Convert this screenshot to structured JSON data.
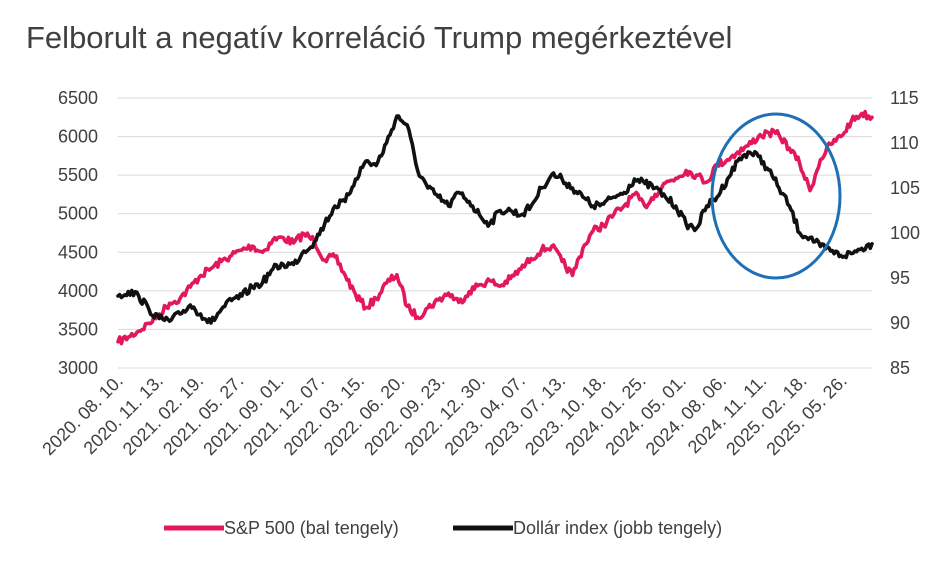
{
  "chart_data": {
    "type": "line",
    "title": "Felborult a negatív korreláció Trump megérkeztével",
    "x_tick_labels": [
      "2020. 08. 10.",
      "2020. 11. 13.",
      "2021. 02. 19.",
      "2021. 05. 27.",
      "2021. 09. 01.",
      "2021. 12. 07.",
      "2022. 03. 15.",
      "2022. 06. 20.",
      "2022. 09. 23.",
      "2022. 12. 30.",
      "2023. 04. 07.",
      "2023. 07. 13.",
      "2023. 10. 18.",
      "2024. 01. 25.",
      "2024. 05. 01.",
      "2024. 08. 06.",
      "2024. 11. 11.",
      "2025. 02. 18.",
      "2025. 05. 26."
    ],
    "left_axis": {
      "ylim": [
        3000,
        6500
      ],
      "ticks": [
        3000,
        3500,
        4000,
        4500,
        5000,
        5500,
        6000,
        6500
      ]
    },
    "right_axis": {
      "ylim": [
        85,
        115
      ],
      "ticks": [
        85,
        90,
        95,
        100,
        105,
        110,
        115
      ]
    },
    "grid": true,
    "legend_position": "bottom",
    "annotation": {
      "shape": "ellipse",
      "color": "#1f6fb5",
      "x_range": [
        "2024. 07.",
        "2025. 04."
      ]
    },
    "series": [
      {
        "name": "S&P 500 (bal tengely)",
        "axis": "left",
        "color": "#e2175c",
        "points": [
          [
            0,
            3340
          ],
          [
            2,
            3400
          ],
          [
            4,
            3480
          ],
          [
            6,
            3580
          ],
          [
            8,
            3700
          ],
          [
            10,
            3840
          ],
          [
            12,
            3900
          ],
          [
            14,
            4050
          ],
          [
            16,
            4200
          ],
          [
            18,
            4290
          ],
          [
            20,
            4380
          ],
          [
            22,
            4460
          ],
          [
            24,
            4530
          ],
          [
            26,
            4580
          ],
          [
            28,
            4500
          ],
          [
            30,
            4660
          ],
          [
            32,
            4690
          ],
          [
            34,
            4620
          ],
          [
            36,
            4740
          ],
          [
            38,
            4650
          ],
          [
            40,
            4400
          ],
          [
            42,
            4440
          ],
          [
            44,
            4200
          ],
          [
            46,
            3950
          ],
          [
            48,
            3780
          ],
          [
            50,
            3900
          ],
          [
            52,
            4100
          ],
          [
            54,
            4210
          ],
          [
            56,
            3800
          ],
          [
            58,
            3660
          ],
          [
            60,
            3780
          ],
          [
            62,
            3880
          ],
          [
            64,
            3970
          ],
          [
            66,
            3850
          ],
          [
            68,
            3990
          ],
          [
            70,
            4080
          ],
          [
            72,
            4130
          ],
          [
            74,
            4060
          ],
          [
            76,
            4160
          ],
          [
            78,
            4280
          ],
          [
            80,
            4420
          ],
          [
            82,
            4530
          ],
          [
            84,
            4580
          ],
          [
            86,
            4380
          ],
          [
            88,
            4200
          ],
          [
            90,
            4550
          ],
          [
            92,
            4780
          ],
          [
            94,
            4850
          ],
          [
            96,
            4990
          ],
          [
            98,
            5100
          ],
          [
            100,
            5250
          ],
          [
            102,
            5100
          ],
          [
            104,
            5250
          ],
          [
            106,
            5400
          ],
          [
            108,
            5460
          ],
          [
            110,
            5560
          ],
          [
            112,
            5500
          ],
          [
            114,
            5410
          ],
          [
            116,
            5640
          ],
          [
            118,
            5700
          ],
          [
            120,
            5800
          ],
          [
            122,
            5880
          ],
          [
            124,
            6000
          ],
          [
            126,
            6050
          ],
          [
            128,
            6020
          ],
          [
            130,
            5850
          ],
          [
            132,
            5650
          ],
          [
            134,
            5300
          ],
          [
            136,
            5700
          ],
          [
            138,
            5900
          ],
          [
            140,
            6000
          ],
          [
            142,
            6200
          ],
          [
            144,
            6300
          ],
          [
            146,
            6250
          ]
        ]
      },
      {
        "name": "Dollár index (jobb tengely)",
        "axis": "right",
        "color": "#111111",
        "points": [
          [
            0,
            93
          ],
          [
            2,
            93.5
          ],
          [
            4,
            93
          ],
          [
            6,
            91.5
          ],
          [
            8,
            90.5
          ],
          [
            10,
            90.2
          ],
          [
            12,
            91
          ],
          [
            14,
            92
          ],
          [
            16,
            91
          ],
          [
            18,
            90
          ],
          [
            20,
            91.5
          ],
          [
            22,
            92.5
          ],
          [
            24,
            93
          ],
          [
            26,
            94
          ],
          [
            28,
            94.5
          ],
          [
            30,
            96
          ],
          [
            32,
            96.5
          ],
          [
            34,
            96.5
          ],
          [
            36,
            98
          ],
          [
            38,
            99
          ],
          [
            40,
            101
          ],
          [
            42,
            103
          ],
          [
            44,
            103.5
          ],
          [
            46,
            106
          ],
          [
            48,
            108
          ],
          [
            50,
            107.5
          ],
          [
            52,
            110
          ],
          [
            54,
            113
          ],
          [
            56,
            112
          ],
          [
            58,
            107
          ],
          [
            60,
            105
          ],
          [
            62,
            104
          ],
          [
            64,
            103
          ],
          [
            66,
            104.5
          ],
          [
            68,
            103.5
          ],
          [
            70,
            102
          ],
          [
            72,
            101
          ],
          [
            74,
            102.5
          ],
          [
            76,
            102.5
          ],
          [
            78,
            102
          ],
          [
            80,
            103
          ],
          [
            82,
            105
          ],
          [
            84,
            106.5
          ],
          [
            86,
            106
          ],
          [
            88,
            105
          ],
          [
            90,
            104
          ],
          [
            92,
            103
          ],
          [
            94,
            103.2
          ],
          [
            96,
            104
          ],
          [
            98,
            104.5
          ],
          [
            100,
            106
          ],
          [
            102,
            105.5
          ],
          [
            104,
            105
          ],
          [
            106,
            104
          ],
          [
            108,
            103
          ],
          [
            110,
            101
          ],
          [
            112,
            100.5
          ],
          [
            114,
            103
          ],
          [
            116,
            104
          ],
          [
            118,
            106
          ],
          [
            120,
            108
          ],
          [
            122,
            109
          ],
          [
            124,
            108.5
          ],
          [
            126,
            107
          ],
          [
            128,
            105
          ],
          [
            130,
            103
          ],
          [
            132,
            100
          ],
          [
            134,
            99.5
          ],
          [
            136,
            98.5
          ],
          [
            138,
            98
          ],
          [
            140,
            97.5
          ],
          [
            142,
            97.7
          ],
          [
            144,
            98.3
          ],
          [
            146,
            98.8
          ]
        ]
      }
    ]
  }
}
